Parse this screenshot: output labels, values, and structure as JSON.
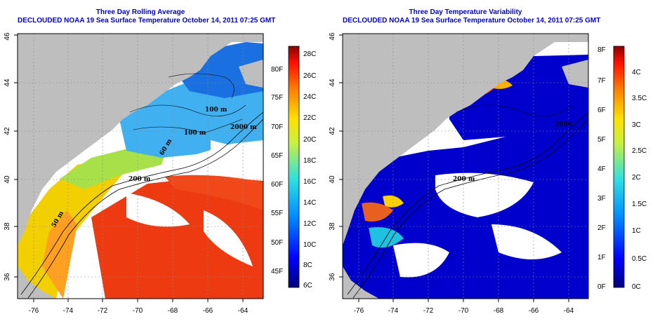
{
  "left": {
    "title1": "Three Day Rolling Average",
    "title2": "DECLOUDED NOAA 19 Sea Surface Temperature October 14, 2011 07:25 GMT",
    "x_ticks": [
      "-76",
      "-74",
      "-72",
      "-70",
      "-68",
      "-66",
      "-64"
    ],
    "y_ticks": [
      "36",
      "38",
      "40",
      "42",
      "44",
      "46"
    ],
    "contours": [
      "100 m",
      "100 m",
      "2000 m",
      "200 m",
      "50 m",
      "60 m"
    ],
    "cb_c": [
      "28C",
      "26C",
      "24C",
      "22C",
      "20C",
      "18C",
      "16C",
      "14C",
      "12C",
      "10C",
      "8C",
      "6C"
    ],
    "cb_f": [
      "80F",
      "75F",
      "70F",
      "65F",
      "60F",
      "55F",
      "50F",
      "45F"
    ]
  },
  "right": {
    "title1": "Three Day Temperature Variability",
    "title2": "DECLOUDED NOAA 19 Sea Surface Temperature October 14, 2011 07:25 GMT",
    "x_ticks": [
      "-76",
      "-74",
      "-72",
      "-70",
      "-68",
      "-66",
      "-64"
    ],
    "y_ticks": [
      "36",
      "38",
      "40",
      "42",
      "44",
      "46"
    ],
    "contours": [
      "2000",
      "200 m"
    ],
    "cb_c": [
      "4C",
      "3.5C",
      "3C",
      "2.5C",
      "2C",
      "1.5C",
      "1C",
      "0.5C",
      "0C"
    ],
    "cb_f": [
      "8F",
      "7F",
      "6F",
      "5F",
      "4F",
      "3F",
      "2F",
      "1F",
      "0F"
    ]
  },
  "colors": {
    "land": "#bebebe",
    "ocean_missing": "#ffffff",
    "warm": "#ee3a10",
    "cool": "#40b0f0",
    "var_low": "#0000cc",
    "title_blue": "#0000cc"
  }
}
